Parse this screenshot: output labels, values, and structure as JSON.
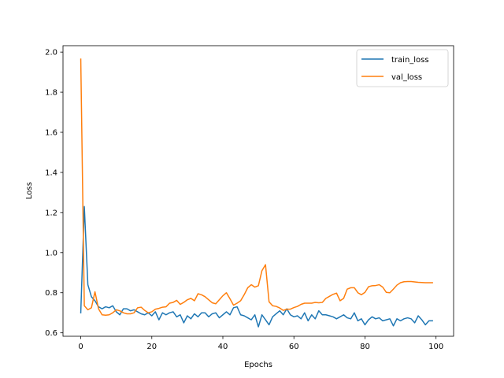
{
  "chart_data": {
    "type": "line",
    "title": "",
    "xlabel": "Epochs",
    "ylabel": "Loss",
    "xlim": [
      -5,
      104.95
    ],
    "ylim": [
      0.583,
      2.032
    ],
    "xticks": [
      0,
      20,
      40,
      60,
      80,
      100
    ],
    "yticks": [
      0.6,
      0.8,
      1.0,
      1.2,
      1.4,
      1.6,
      1.8,
      2.0
    ],
    "xtick_labels": [
      "0",
      "20",
      "40",
      "60",
      "80",
      "100"
    ],
    "ytick_labels": [
      "0.6",
      "0.8",
      "1.0",
      "1.2",
      "1.4",
      "1.6",
      "1.8",
      "2.0"
    ],
    "grid": false,
    "legend_position": "upper-right",
    "series": [
      {
        "name": "train_loss",
        "color": "#1f77b4",
        "values": [
          0.7,
          1.23,
          0.84,
          0.78,
          0.76,
          0.73,
          0.72,
          0.73,
          0.725,
          0.735,
          0.705,
          0.69,
          0.72,
          0.72,
          0.71,
          0.715,
          0.705,
          0.695,
          0.69,
          0.7,
          0.685,
          0.705,
          0.665,
          0.7,
          0.69,
          0.7,
          0.705,
          0.68,
          0.69,
          0.65,
          0.685,
          0.67,
          0.695,
          0.68,
          0.7,
          0.7,
          0.68,
          0.695,
          0.7,
          0.675,
          0.69,
          0.705,
          0.69,
          0.725,
          0.73,
          0.69,
          0.685,
          0.675,
          0.665,
          0.69,
          0.63,
          0.69,
          0.665,
          0.64,
          0.68,
          0.695,
          0.71,
          0.69,
          0.72,
          0.69,
          0.68,
          0.685,
          0.67,
          0.7,
          0.66,
          0.69,
          0.67,
          0.71,
          0.69,
          0.69,
          0.685,
          0.68,
          0.67,
          0.68,
          0.69,
          0.675,
          0.67,
          0.7,
          0.66,
          0.67,
          0.64,
          0.665,
          0.68,
          0.67,
          0.675,
          0.66,
          0.665,
          0.67,
          0.635,
          0.67,
          0.66,
          0.67,
          0.675,
          0.67,
          0.65,
          0.685,
          0.665,
          0.64,
          0.66,
          0.66
        ]
      },
      {
        "name": "val_loss",
        "color": "#ff7f0e",
        "values": [
          1.965,
          0.735,
          0.715,
          0.725,
          0.805,
          0.72,
          0.69,
          0.688,
          0.69,
          0.7,
          0.715,
          0.71,
          0.7,
          0.695,
          0.695,
          0.7,
          0.725,
          0.728,
          0.712,
          0.7,
          0.705,
          0.718,
          0.722,
          0.728,
          0.73,
          0.748,
          0.752,
          0.762,
          0.742,
          0.752,
          0.765,
          0.772,
          0.76,
          0.795,
          0.79,
          0.78,
          0.765,
          0.75,
          0.745,
          0.765,
          0.785,
          0.8,
          0.77,
          0.738,
          0.748,
          0.76,
          0.79,
          0.825,
          0.84,
          0.828,
          0.835,
          0.91,
          0.94,
          0.755,
          0.735,
          0.732,
          0.724,
          0.712,
          0.718,
          0.718,
          0.726,
          0.732,
          0.742,
          0.748,
          0.748,
          0.748,
          0.752,
          0.75,
          0.752,
          0.772,
          0.782,
          0.792,
          0.798,
          0.76,
          0.772,
          0.818,
          0.825,
          0.825,
          0.8,
          0.79,
          0.802,
          0.83,
          0.835,
          0.836,
          0.84,
          0.828,
          0.802,
          0.8,
          0.818,
          0.838,
          0.85,
          0.855,
          0.856,
          0.856,
          0.854,
          0.852,
          0.851,
          0.85,
          0.85,
          0.85
        ]
      }
    ]
  }
}
